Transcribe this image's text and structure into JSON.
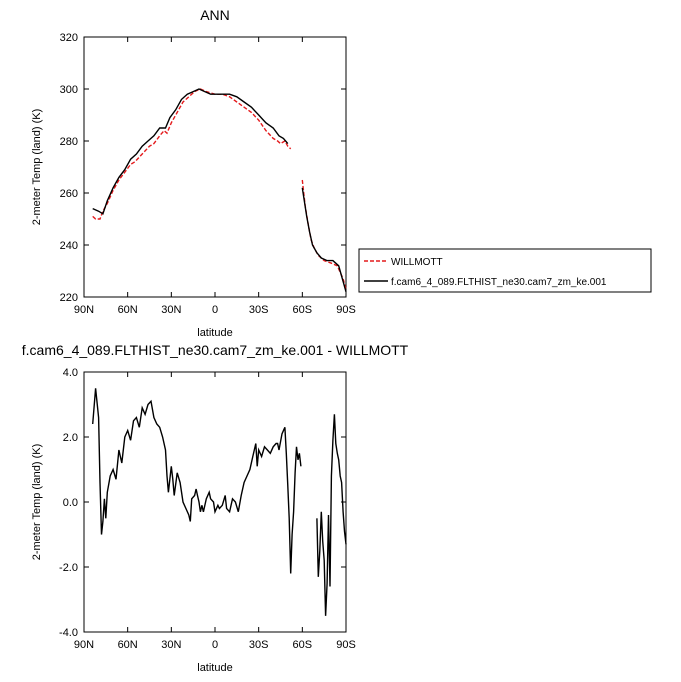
{
  "chart_data": [
    {
      "type": "line",
      "title": "ANN",
      "xlabel": "latitude",
      "ylabel": "2-meter Temp (land) (K)",
      "xlim": [
        90,
        -90
      ],
      "ylim": [
        220,
        320
      ],
      "xticks": [
        90,
        60,
        30,
        0,
        -30,
        -60,
        -90
      ],
      "xtick_labels": [
        "90N",
        "60N",
        "30N",
        "0",
        "30S",
        "60S",
        "90S"
      ],
      "yticks": [
        220,
        240,
        260,
        280,
        300,
        320
      ],
      "ytick_labels": [
        "220",
        "240",
        "260",
        "280",
        "300",
        "320"
      ],
      "grid": false,
      "legend_position": "right",
      "series": [
        {
          "name": "WILLMOTT",
          "color": "#e41a1c",
          "dash": "dashed",
          "segments": [
            [
              [
                84,
                251
              ],
              [
                82,
                250
              ],
              [
                79,
                250
              ],
              [
                77,
                253
              ],
              [
                74,
                256
              ],
              [
                70,
                261
              ],
              [
                66,
                265
              ],
              [
                62,
                268
              ],
              [
                58,
                271
              ],
              [
                55,
                272
              ],
              [
                50,
                275
              ],
              [
                45,
                278
              ],
              [
                42,
                279
              ],
              [
                38,
                282
              ],
              [
                35,
                284
              ],
              [
                33,
                283
              ],
              [
                30,
                287
              ],
              [
                26,
                291
              ],
              [
                22,
                295
              ],
              [
                18,
                297
              ],
              [
                14,
                299
              ],
              [
                10,
                300
              ],
              [
                6,
                299
              ],
              [
                0,
                298
              ],
              [
                -5,
                298
              ],
              [
                -10,
                297
              ],
              [
                -15,
                295
              ],
              [
                -20,
                293
              ],
              [
                -25,
                291
              ],
              [
                -30,
                288
              ],
              [
                -35,
                284
              ],
              [
                -40,
                281
              ],
              [
                -43,
                280
              ],
              [
                -45,
                279
              ],
              [
                -48,
                280
              ],
              [
                -50,
                278
              ],
              [
                -52,
                277
              ]
            ],
            [
              [
                -60,
                265
              ],
              [
                -62,
                255
              ],
              [
                -64,
                248
              ],
              [
                -66,
                242
              ],
              [
                -68,
                239
              ],
              [
                -71,
                236
              ],
              [
                -75,
                234
              ],
              [
                -80,
                233
              ],
              [
                -84,
                232
              ],
              [
                -88,
                227
              ],
              [
                -90,
                223
              ]
            ]
          ]
        },
        {
          "name": "f.cam6_4_089.FLTHIST_ne30.cam7_zm_ke.001",
          "color": "#000000",
          "dash": "solid",
          "segments": [
            [
              [
                84,
                254
              ],
              [
                80,
                253
              ],
              [
                77,
                252
              ],
              [
                74,
                257
              ],
              [
                70,
                262
              ],
              [
                66,
                266
              ],
              [
                62,
                269
              ],
              [
                58,
                273
              ],
              [
                54,
                275
              ],
              [
                50,
                278
              ],
              [
                46,
                280
              ],
              [
                42,
                282
              ],
              [
                38,
                285
              ],
              [
                34,
                285
              ],
              [
                31,
                289
              ],
              [
                27,
                292
              ],
              [
                23,
                296
              ],
              [
                19,
                298
              ],
              [
                15,
                299
              ],
              [
                11,
                300
              ],
              [
                7,
                299
              ],
              [
                3,
                298
              ],
              [
                0,
                298
              ],
              [
                -5,
                298
              ],
              [
                -10,
                298
              ],
              [
                -15,
                297
              ],
              [
                -20,
                295
              ],
              [
                -25,
                293
              ],
              [
                -30,
                290
              ],
              [
                -35,
                287
              ],
              [
                -40,
                285
              ],
              [
                -44,
                282
              ],
              [
                -47,
                281
              ],
              [
                -50,
                279
              ]
            ],
            [
              [
                -60,
                262
              ],
              [
                -63,
                251
              ],
              [
                -65,
                245
              ],
              [
                -67,
                240
              ],
              [
                -70,
                237
              ],
              [
                -73,
                235
              ],
              [
                -77,
                234
              ],
              [
                -81,
                234
              ],
              [
                -85,
                232
              ],
              [
                -88,
                226
              ],
              [
                -90,
                222
              ]
            ]
          ]
        }
      ]
    },
    {
      "type": "line",
      "title": "f.cam6_4_089.FLTHIST_ne30.cam7_zm_ke.001 - WILLMOTT",
      "xlabel": "latitude",
      "ylabel": "2-meter Temp (land) (K)",
      "xlim": [
        90,
        -90
      ],
      "ylim": [
        -4,
        4
      ],
      "xticks": [
        90,
        60,
        30,
        0,
        -30,
        -60,
        -90
      ],
      "xtick_labels": [
        "90N",
        "60N",
        "30N",
        "0",
        "30S",
        "60S",
        "90S"
      ],
      "yticks": [
        -4,
        -2,
        0,
        2,
        4
      ],
      "ytick_labels": [
        "-4.0",
        "-2.0",
        "0.0",
        "2.0",
        "4.0"
      ],
      "grid": false,
      "series": [
        {
          "color": "#000000",
          "dash": "solid",
          "segments": [
            [
              [
                84,
                2.4
              ],
              [
                82,
                3.5
              ],
              [
                80,
                2.6
              ],
              [
                79,
                0.6
              ],
              [
                78,
                -1.0
              ],
              [
                77,
                -0.6
              ],
              [
                76,
                0.1
              ],
              [
                75,
                -0.5
              ],
              [
                74,
                0.3
              ],
              [
                72,
                0.8
              ],
              [
                70,
                1.0
              ],
              [
                68,
                0.7
              ],
              [
                66,
                1.6
              ],
              [
                64,
                1.2
              ],
              [
                62,
                2.0
              ],
              [
                60,
                2.2
              ],
              [
                58,
                1.9
              ],
              [
                56,
                2.5
              ],
              [
                54,
                2.6
              ],
              [
                52,
                2.3
              ],
              [
                50,
                2.9
              ],
              [
                48,
                2.7
              ],
              [
                46,
                3.0
              ],
              [
                44,
                3.1
              ],
              [
                42,
                2.6
              ],
              [
                40,
                2.4
              ],
              [
                38,
                2.3
              ],
              [
                36,
                2.0
              ],
              [
                34,
                1.6
              ],
              [
                33,
                0.8
              ],
              [
                32,
                0.3
              ],
              [
                30,
                1.1
              ],
              [
                29,
                0.7
              ],
              [
                28,
                0.2
              ],
              [
                26,
                0.9
              ],
              [
                24,
                0.6
              ],
              [
                22,
                0.0
              ],
              [
                20,
                -0.2
              ],
              [
                18,
                -0.4
              ],
              [
                17,
                -0.6
              ],
              [
                16,
                0.1
              ],
              [
                14,
                0.2
              ],
              [
                13,
                0.4
              ],
              [
                12,
                0.2
              ],
              [
                11,
                0.0
              ],
              [
                10,
                -0.3
              ],
              [
                9,
                -0.1
              ],
              [
                8,
                -0.3
              ],
              [
                6,
                0.1
              ],
              [
                4,
                0.3
              ],
              [
                3,
                0.1
              ],
              [
                1,
                0.0
              ],
              [
                0,
                -0.3
              ],
              [
                -2,
                -0.1
              ],
              [
                -3,
                -0.2
              ],
              [
                -5,
                -0.1
              ],
              [
                -7,
                0.2
              ],
              [
                -8,
                -0.2
              ],
              [
                -10,
                -0.3
              ],
              [
                -12,
                0.1
              ],
              [
                -14,
                0.0
              ],
              [
                -16,
                -0.3
              ],
              [
                -18,
                0.2
              ],
              [
                -20,
                0.6
              ],
              [
                -22,
                0.8
              ],
              [
                -24,
                1.0
              ],
              [
                -26,
                1.4
              ],
              [
                -28,
                1.8
              ],
              [
                -29,
                1.1
              ],
              [
                -30,
                1.6
              ],
              [
                -32,
                1.4
              ],
              [
                -34,
                1.7
              ],
              [
                -36,
                1.6
              ],
              [
                -38,
                1.5
              ],
              [
                -40,
                1.7
              ],
              [
                -42,
                1.8
              ],
              [
                -43,
                1.8
              ],
              [
                -44,
                1.6
              ],
              [
                -46,
                2.1
              ],
              [
                -48,
                2.3
              ],
              [
                -49,
                1.5
              ],
              [
                -50,
                0.5
              ],
              [
                -51,
                -0.5
              ],
              [
                -52,
                -2.2
              ],
              [
                -53,
                -1.0
              ],
              [
                -54,
                -0.3
              ],
              [
                -55,
                0.9
              ],
              [
                -56,
                1.7
              ],
              [
                -57,
                1.3
              ],
              [
                -58,
                1.5
              ],
              [
                -59,
                1.1
              ]
            ],
            [
              [
                -70,
                -0.5
              ],
              [
                -71,
                -2.3
              ],
              [
                -72,
                -1.5
              ],
              [
                -73,
                -0.3
              ],
              [
                -74,
                -1.2
              ],
              [
                -75,
                -1.8
              ],
              [
                -76,
                -3.5
              ],
              [
                -77,
                -2.5
              ],
              [
                -78,
                -0.4
              ],
              [
                -79,
                -2.6
              ],
              [
                -80,
                0.8
              ],
              [
                -81,
                1.9
              ],
              [
                -82,
                2.7
              ],
              [
                -83,
                1.8
              ],
              [
                -84,
                1.5
              ],
              [
                -85,
                1.3
              ],
              [
                -86,
                0.8
              ],
              [
                -87,
                0.6
              ],
              [
                -88,
                -0.3
              ],
              [
                -89,
                -0.9
              ],
              [
                -90,
                -1.3
              ]
            ]
          ]
        }
      ]
    }
  ]
}
